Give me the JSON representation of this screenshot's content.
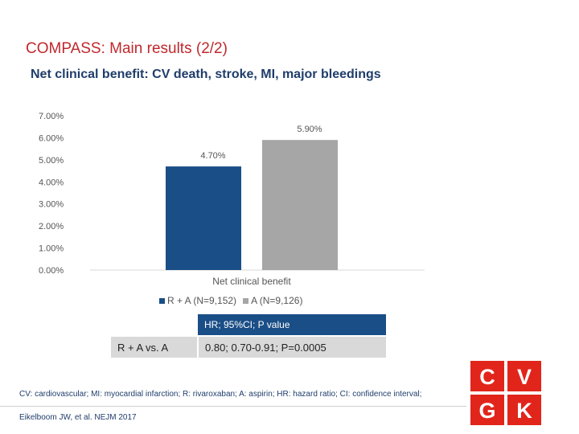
{
  "slide": {
    "title": "COMPASS: Main results (2/2)",
    "subtitle": "Net clinical benefit: CV death, stroke, MI, major bleedings"
  },
  "chart_data": {
    "type": "bar",
    "categories": [
      "Net clinical benefit"
    ],
    "series": [
      {
        "name": "R + A (N=9,152)",
        "values": [
          4.7
        ],
        "label": "4.70%",
        "color": "#1a4e86"
      },
      {
        "name": "A (N=9,126)",
        "values": [
          5.9
        ],
        "label": "5.90%",
        "color": "#a6a6a6"
      }
    ],
    "ylim": [
      0,
      7
    ],
    "yticks": [
      "0.00%",
      "1.00%",
      "2.00%",
      "3.00%",
      "4.00%",
      "5.00%",
      "6.00%",
      "7.00%"
    ],
    "grid": false,
    "legend": "bottom"
  },
  "table": {
    "header": "HR; 95%CI; P value",
    "row_label": "R + A vs. A",
    "row_value": "0.80; 0.70-0.91; P=0.0005"
  },
  "footnote": "CV: cardiovascular; MI: myocardial infarction; R: rivaroxaban; A: aspirin; HR: hazard ratio; CI: confidence interval;",
  "reference": "Eikelboom JW, et al. NEJM 2017",
  "logo": {
    "letters": [
      "C",
      "V",
      "G",
      "K"
    ],
    "color": "#e1251b"
  }
}
